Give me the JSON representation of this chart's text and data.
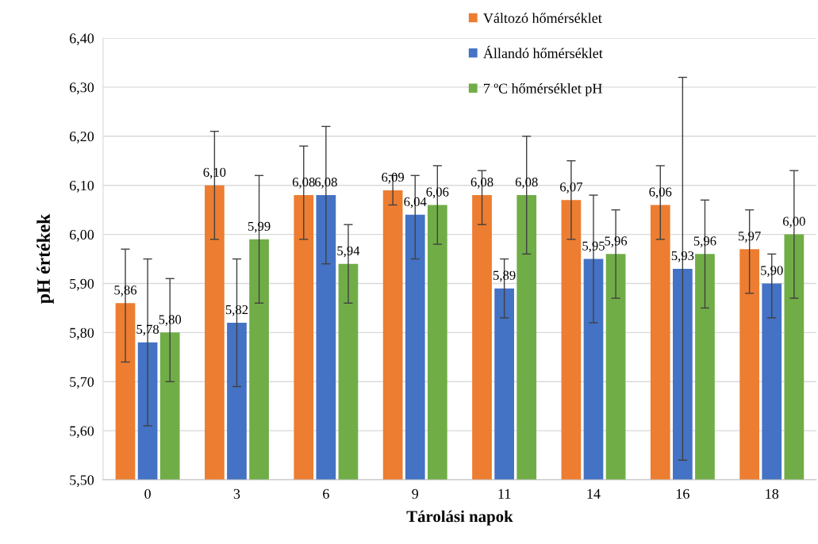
{
  "chart_data": {
    "type": "bar",
    "xlabel": "Tárolási napok",
    "ylabel": "pH értékek",
    "categories": [
      "0",
      "3",
      "6",
      "9",
      "11",
      "14",
      "16",
      "18"
    ],
    "series": [
      {
        "name": "Változó hőmérséklet",
        "color": "#ed7d31",
        "values": [
          5.86,
          6.1,
          6.08,
          6.09,
          6.08,
          6.07,
          6.06,
          5.97
        ],
        "value_labels": [
          "5,86",
          "6,10",
          "6,08",
          "6,09",
          "6,08",
          "6,07",
          "6,06",
          "5,97"
        ],
        "errors": [
          [
            5.74,
            5.97
          ],
          [
            5.99,
            6.21
          ],
          [
            5.99,
            6.18
          ],
          [
            6.06,
            6.12
          ],
          [
            6.02,
            6.13
          ],
          [
            5.99,
            6.15
          ],
          [
            5.99,
            6.14
          ],
          [
            5.88,
            6.05
          ]
        ]
      },
      {
        "name": "Állandó hőmérséklet",
        "color": "#4472c4",
        "values": [
          5.78,
          5.82,
          6.08,
          6.04,
          5.89,
          5.95,
          5.93,
          5.9
        ],
        "value_labels": [
          "5,78",
          "5,82",
          "6,08",
          "6,04",
          "5,89",
          "5,95",
          "5,93",
          "5,90"
        ],
        "errors": [
          [
            5.61,
            5.95
          ],
          [
            5.69,
            5.95
          ],
          [
            5.94,
            6.22
          ],
          [
            5.95,
            6.12
          ],
          [
            5.83,
            5.95
          ],
          [
            5.82,
            6.08
          ],
          [
            5.54,
            6.32
          ],
          [
            5.83,
            5.96
          ]
        ]
      },
      {
        "name": "7 ºC hőmérséklet pH",
        "color": "#70ad47",
        "values": [
          5.8,
          5.99,
          5.94,
          6.06,
          6.08,
          5.96,
          5.96,
          6.0
        ],
        "value_labels": [
          "5,80",
          "5,99",
          "5,94",
          "6,06",
          "6,08",
          "5,96",
          "5,96",
          "6,00"
        ],
        "errors": [
          [
            5.7,
            5.91
          ],
          [
            5.86,
            6.12
          ],
          [
            5.86,
            6.02
          ],
          [
            5.98,
            6.14
          ],
          [
            5.96,
            6.2
          ],
          [
            5.87,
            6.05
          ],
          [
            5.85,
            6.07
          ],
          [
            5.87,
            6.13
          ]
        ]
      }
    ],
    "ylim": [
      5.5,
      6.4
    ],
    "yticks": [
      {
        "value": 5.5,
        "label": "5,50"
      },
      {
        "value": 5.6,
        "label": "5,60"
      },
      {
        "value": 5.7,
        "label": "5,70"
      },
      {
        "value": 5.8,
        "label": "5,80"
      },
      {
        "value": 5.9,
        "label": "5,90"
      },
      {
        "value": 6.0,
        "label": "6,00"
      },
      {
        "value": 6.1,
        "label": "6,10"
      },
      {
        "value": 6.2,
        "label": "6,20"
      },
      {
        "value": 6.3,
        "label": "6,30"
      },
      {
        "value": 6.4,
        "label": "6,40"
      }
    ],
    "grid": "y",
    "legend": "top"
  }
}
